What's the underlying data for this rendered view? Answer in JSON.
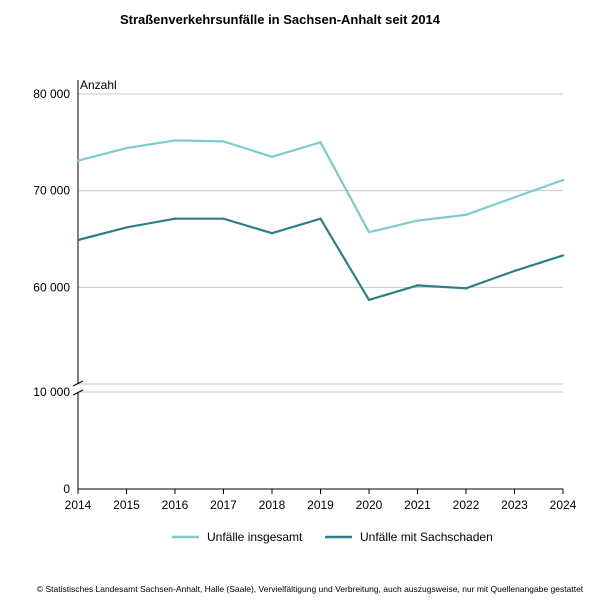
{
  "chart_data": {
    "type": "line",
    "title": "Straßenverkehrsunfälle in Sachsen-Anhalt seit 2014",
    "ylabel": "Anzahl",
    "xlabel": "",
    "x": [
      "2014",
      "2015",
      "2016",
      "2017",
      "2018",
      "2019",
      "2020",
      "2021",
      "2022",
      "2023",
      "2024"
    ],
    "axis_break": {
      "from": 10000,
      "to": 50000
    },
    "upper_ylim": [
      50000,
      80000
    ],
    "lower_ylim": [
      0,
      10000
    ],
    "y_ticks": [
      {
        "value": 80000,
        "label": "80 000"
      },
      {
        "value": 70000,
        "label": "70 000"
      },
      {
        "value": 60000,
        "label": "60 000"
      },
      {
        "value": 10000,
        "label": "10 000"
      },
      {
        "value": 0,
        "label": "0"
      }
    ],
    "grid": true,
    "legend_position": "bottom",
    "series": [
      {
        "name": "Unfälle insgesamt",
        "color": "#7ecbcc",
        "values": [
          73100,
          74400,
          75200,
          75100,
          73500,
          75000,
          65700,
          66900,
          67500,
          69300,
          71100
        ]
      },
      {
        "name": "Unfälle mit Sachschaden",
        "color": "#2e7f87",
        "values": [
          64900,
          66200,
          67100,
          67100,
          65600,
          67100,
          58700,
          60200,
          59900,
          61700,
          63300
        ]
      }
    ]
  },
  "colors": {
    "grid": "#c8c8c8",
    "axis": "#000000"
  },
  "footer": "© Statistisches Landesamt Sachsen-Anhalt, Halle (Saale), Vervielfältigung und Verbreitung, auch auszugsweise, nur mit Quellenangabe gestattet"
}
